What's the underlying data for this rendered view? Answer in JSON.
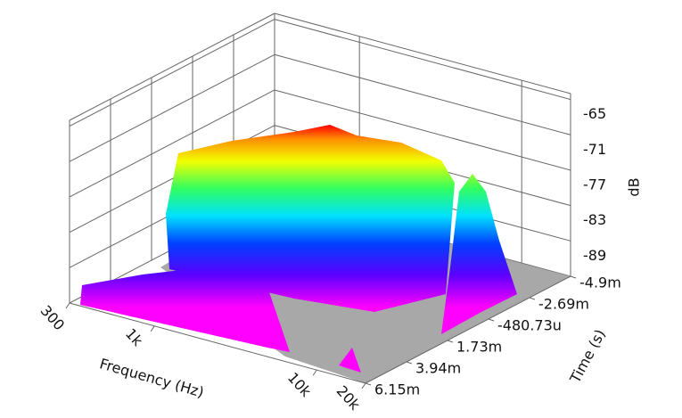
{
  "chart_data": {
    "type": "surface",
    "x_label": "Frequency (Hz)",
    "y_label": "Time (s)",
    "z_label": "dB",
    "xscale": "log",
    "xlim": [
      300,
      20000
    ],
    "xticks": [
      300,
      {
        "value": 1000,
        "label": "1k"
      },
      {
        "value": 10000,
        "label": "10k"
      },
      {
        "value": 20000,
        "label": "20k"
      }
    ],
    "ylim": [
      -0.0049,
      0.00615
    ],
    "yticks": [
      {
        "value": -0.0049,
        "label": "-4.9m"
      },
      {
        "value": -0.00269,
        "label": "-2.69m"
      },
      {
        "value": -0.00048073,
        "label": "-480.73u"
      },
      {
        "value": 0.00173,
        "label": "1.73m"
      },
      {
        "value": 0.00394,
        "label": "3.94m"
      },
      {
        "value": 0.00615,
        "label": "6.15m"
      }
    ],
    "zlim": [
      -95,
      -64
    ],
    "zticks": [
      -65,
      -71,
      -77,
      -83,
      -89
    ],
    "grid": true
  }
}
